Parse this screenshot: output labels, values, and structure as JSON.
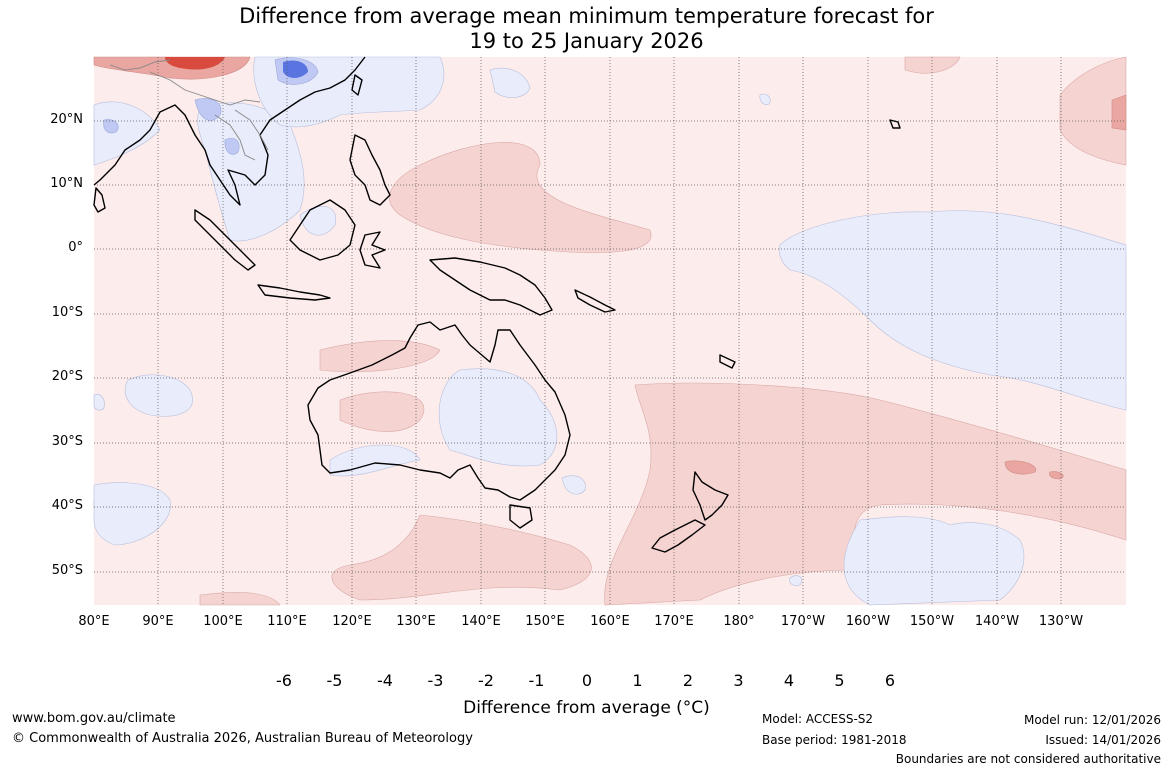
{
  "title": {
    "line1": "Difference from average mean minimum temperature forecast for",
    "line2": "19 to 25 January 2026"
  },
  "map": {
    "lat_labels": [
      "20°N",
      "10°N",
      "0°",
      "10°S",
      "20°S",
      "30°S",
      "40°S",
      "50°S"
    ],
    "lon_labels": [
      "80°E",
      "90°E",
      "100°E",
      "110°E",
      "120°E",
      "130°E",
      "140°E",
      "150°E",
      "160°E",
      "170°E",
      "180°",
      "170°W",
      "160°W",
      "150°W",
      "140°W",
      "130°W"
    ]
  },
  "colorbar": {
    "ticks": [
      "-6",
      "-5",
      "-4",
      "-3",
      "-2",
      "-1",
      "0",
      "1",
      "2",
      "3",
      "4",
      "5",
      "6"
    ],
    "colors": [
      "#1a2a7a",
      "#2238a8",
      "#2c4fd6",
      "#5a75e0",
      "#8b9ee8",
      "#c0c9f3",
      "#e8ecfb",
      "#fcecec",
      "#f5d3d1",
      "#eaa7a2",
      "#e28179",
      "#d94a3e",
      "#a5282a",
      "#6b1a1c"
    ],
    "title": "Difference from average (°C)"
  },
  "footer": {
    "website": "www.bom.gov.au/climate",
    "copyright": "© Commonwealth of Australia 2026, Australian Bureau of Meteorology",
    "model": "Model: ACCESS-S2",
    "base_period": "Base period: 1981-2018",
    "model_run": "Model run: 12/01/2026",
    "issued": "Issued: 14/01/2026",
    "disclaimer": "Boundaries are not considered authoritative"
  }
}
